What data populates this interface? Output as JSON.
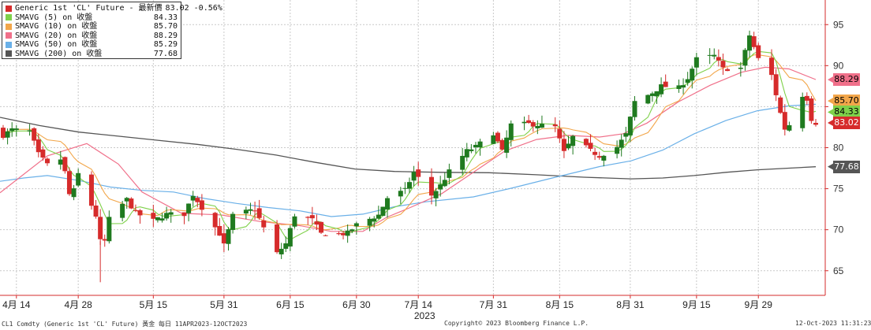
{
  "chart_data": {
    "type": "candlestick",
    "x_range": [
      "2023-04-11",
      "2023-10-12"
    ],
    "y_axis": {
      "min": 62,
      "max": 98,
      "ticks": [
        65,
        70,
        75,
        80,
        85,
        90,
        95
      ],
      "position": "right"
    },
    "x_ticks": [
      {
        "label": "4月 14",
        "date": "2023-04-14"
      },
      {
        "label": "4月 28",
        "date": "2023-04-28"
      },
      {
        "label": "5月 15",
        "date": "2023-05-15"
      },
      {
        "label": "5月 31",
        "date": "2023-05-31"
      },
      {
        "label": "6月 15",
        "date": "2023-06-15"
      },
      {
        "label": "6月 30",
        "date": "2023-06-30"
      },
      {
        "label": "7月 14",
        "date": "2023-07-14"
      },
      {
        "label": "7月 31",
        "date": "2023-07-31"
      },
      {
        "label": "8月 15",
        "date": "2023-08-15"
      },
      {
        "label": "8月 31",
        "date": "2023-08-31"
      },
      {
        "label": "9月 15",
        "date": "2023-09-15"
      },
      {
        "label": "9月 29",
        "date": "2023-09-29"
      }
    ],
    "year_label": "2023",
    "grid": true,
    "close_anchors": [
      [
        "2023-04-11",
        81.5
      ],
      [
        "2023-04-13",
        82.2
      ],
      [
        "2023-04-17",
        82.0
      ],
      [
        "2023-04-19",
        79.2
      ],
      [
        "2023-04-21",
        77.9
      ],
      [
        "2023-04-24",
        78.6
      ],
      [
        "2023-04-25",
        77.0
      ],
      [
        "2023-04-26",
        74.3
      ],
      [
        "2023-04-27",
        74.8
      ],
      [
        "2023-04-28",
        76.8
      ],
      [
        "2023-05-02",
        71.7
      ],
      [
        "2023-05-03",
        68.6
      ],
      [
        "2023-05-04",
        68.6
      ],
      [
        "2023-05-05",
        71.3
      ],
      [
        "2023-05-09",
        73.7
      ],
      [
        "2023-05-11",
        72.0
      ],
      [
        "2023-05-15",
        71.1
      ],
      [
        "2023-05-18",
        71.9
      ],
      [
        "2023-05-22",
        71.9
      ],
      [
        "2023-05-24",
        74.3
      ],
      [
        "2023-05-26",
        72.7
      ],
      [
        "2023-05-30",
        69.5
      ],
      [
        "2023-05-31",
        68.1
      ],
      [
        "2023-06-02",
        71.7
      ],
      [
        "2023-06-05",
        72.2
      ],
      [
        "2023-06-07",
        72.5
      ],
      [
        "2023-06-09",
        70.2
      ],
      [
        "2023-06-12",
        67.1
      ],
      [
        "2023-06-14",
        68.3
      ],
      [
        "2023-06-16",
        71.8
      ],
      [
        "2023-06-20",
        71.2
      ],
      [
        "2023-06-22",
        69.5
      ],
      [
        "2023-06-26",
        69.4
      ],
      [
        "2023-06-28",
        69.6
      ],
      [
        "2023-06-30",
        70.6
      ],
      [
        "2023-07-05",
        71.8
      ],
      [
        "2023-07-07",
        73.9
      ],
      [
        "2023-07-11",
        74.8
      ],
      [
        "2023-07-13",
        77.0
      ],
      [
        "2023-07-17",
        74.2
      ],
      [
        "2023-07-19",
        75.4
      ],
      [
        "2023-07-21",
        77.1
      ],
      [
        "2023-07-25",
        79.6
      ],
      [
        "2023-07-27",
        80.1
      ],
      [
        "2023-07-31",
        81.8
      ],
      [
        "2023-08-02",
        79.5
      ],
      [
        "2023-08-04",
        82.8
      ],
      [
        "2023-08-08",
        82.9
      ],
      [
        "2023-08-10",
        82.8
      ],
      [
        "2023-08-14",
        82.5
      ],
      [
        "2023-08-16",
        79.4
      ],
      [
        "2023-08-18",
        81.3
      ],
      [
        "2023-08-22",
        79.6
      ],
      [
        "2023-08-24",
        79.0
      ],
      [
        "2023-08-28",
        80.1
      ],
      [
        "2023-08-30",
        81.6
      ],
      [
        "2023-09-01",
        85.6
      ],
      [
        "2023-09-05",
        86.7
      ],
      [
        "2023-09-07",
        87.5
      ],
      [
        "2023-09-11",
        87.3
      ],
      [
        "2023-09-13",
        88.5
      ],
      [
        "2023-09-15",
        90.8
      ],
      [
        "2023-09-19",
        91.2
      ],
      [
        "2023-09-21",
        89.6
      ],
      [
        "2023-09-25",
        89.7
      ],
      [
        "2023-09-27",
        93.7
      ],
      [
        "2023-09-29",
        90.8
      ],
      [
        "2023-10-02",
        88.8
      ],
      [
        "2023-10-04",
        84.2
      ],
      [
        "2023-10-05",
        82.3
      ],
      [
        "2023-10-06",
        82.8
      ],
      [
        "2023-10-09",
        86.4
      ],
      [
        "2023-10-10",
        85.97
      ],
      [
        "2023-10-11",
        83.5
      ],
      [
        "2023-10-12",
        83.02
      ]
    ],
    "series": [
      {
        "name": "Generic 1st 'CL' Future - 最新價",
        "value": "83.02",
        "change": "-0.56%",
        "color": "#d62b2b"
      },
      {
        "name": "SMAVG (5)  on 收盤",
        "value": "84.33",
        "color": "#7fd14a"
      },
      {
        "name": "SMAVG (10)  on 收盤",
        "value": "85.70",
        "color": "#f2a64a"
      },
      {
        "name": "SMAVG (20)  on 收盤",
        "value": "88.29",
        "color": "#f0708a"
      },
      {
        "name": "SMAVG (50)  on 收盤",
        "value": "85.29",
        "color": "#6ab0e8"
      },
      {
        "name": "SMAVG (200)  on 收盤",
        "value": "77.68",
        "color": "#555555"
      }
    ],
    "ma_paths": {
      "sma20": [
        [
          0,
          74.5
        ],
        [
          60,
          79
        ],
        [
          110,
          80.5
        ],
        [
          150,
          78
        ],
        [
          180,
          74.6
        ],
        [
          230,
          72
        ],
        [
          280,
          71.8
        ],
        [
          330,
          71
        ],
        [
          380,
          70.5
        ],
        [
          420,
          69.8
        ],
        [
          460,
          69.8
        ],
        [
          490,
          71.5
        ],
        [
          520,
          72.7
        ],
        [
          560,
          74.4
        ],
        [
          600,
          77
        ],
        [
          640,
          79.6
        ],
        [
          680,
          81
        ],
        [
          720,
          81.5
        ],
        [
          760,
          81.3
        ],
        [
          790,
          81.7
        ],
        [
          820,
          83
        ],
        [
          860,
          85.6
        ],
        [
          900,
          87.6
        ],
        [
          940,
          89.2
        ],
        [
          970,
          89.8
        ],
        [
          1000,
          89.6
        ],
        [
          1034,
          88.3
        ]
      ],
      "sma50": [
        [
          0,
          75.9
        ],
        [
          30,
          76.3
        ],
        [
          60,
          76.6
        ],
        [
          100,
          76
        ],
        [
          140,
          75.2
        ],
        [
          180,
          74.8
        ],
        [
          220,
          74.6
        ],
        [
          260,
          73.8
        ],
        [
          300,
          73.2
        ],
        [
          340,
          72.7
        ],
        [
          380,
          72.3
        ],
        [
          420,
          71.6
        ],
        [
          460,
          71.9
        ],
        [
          500,
          72.8
        ],
        [
          540,
          73.4
        ],
        [
          600,
          74
        ],
        [
          650,
          75.1
        ],
        [
          700,
          76.3
        ],
        [
          760,
          77.7
        ],
        [
          800,
          78.4
        ],
        [
          840,
          79.7
        ],
        [
          880,
          81.7
        ],
        [
          920,
          83.3
        ],
        [
          960,
          84.5
        ],
        [
          1000,
          85.1
        ],
        [
          1034,
          85.29
        ]
      ],
      "sma200": [
        [
          0,
          83.7
        ],
        [
          50,
          82.7
        ],
        [
          100,
          81.9
        ],
        [
          150,
          81.4
        ],
        [
          200,
          80.9
        ],
        [
          250,
          80.4
        ],
        [
          300,
          79.8
        ],
        [
          350,
          79.1
        ],
        [
          400,
          78.2
        ],
        [
          450,
          77.4
        ],
        [
          500,
          77.1
        ],
        [
          560,
          77.0
        ],
        [
          620,
          76.95
        ],
        [
          680,
          76.7
        ],
        [
          740,
          76.4
        ],
        [
          800,
          76.2
        ],
        [
          840,
          76.3
        ],
        [
          880,
          76.6
        ],
        [
          920,
          77.0
        ],
        [
          960,
          77.3
        ],
        [
          1000,
          77.5
        ],
        [
          1034,
          77.68
        ]
      ]
    },
    "price_tags": [
      {
        "value": "88.29",
        "y": 88.29,
        "color": "#f0708a",
        "text_color": "#000000"
      },
      {
        "value": "85.70",
        "y": 85.7,
        "color": "#f2a64a",
        "text_color": "#000000"
      },
      {
        "value": "84.33",
        "y": 84.33,
        "color": "#7fd14a",
        "text_color": "#000000"
      },
      {
        "value": "83.02",
        "y": 83.02,
        "color": "#d62b2b",
        "text_color": "#ffffff"
      },
      {
        "value": "77.68",
        "y": 77.68,
        "color": "#555555",
        "text_color": "#ffffff"
      }
    ],
    "colors": {
      "up": "#1f7a1f",
      "down": "#d62b2b",
      "grid": "#c9c9c9",
      "axis": "#d62b2b"
    }
  },
  "footer": {
    "left": "CL1 Comdty (Generic 1st 'CL' Future) 黃金  每日 11APR2023-12OCT2023",
    "center": "Copyright© 2023 Bloomberg Finance L.P.",
    "right": "12-Oct-2023  11:31:23"
  }
}
